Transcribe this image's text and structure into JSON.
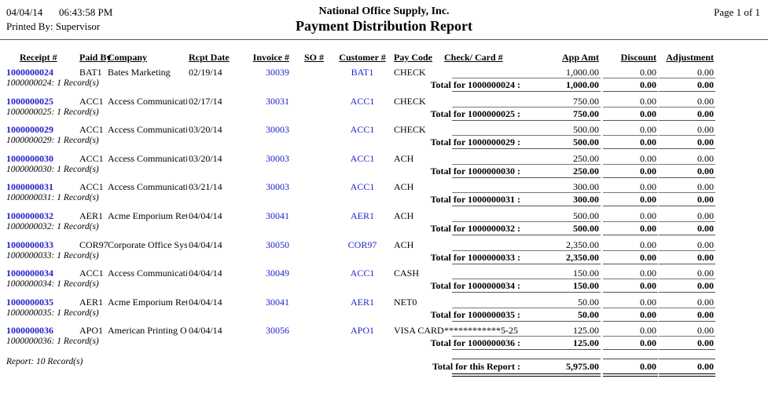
{
  "page": {
    "date": "04/04/14",
    "time": "06:43:58 PM",
    "printed_by": "Printed By: Supervisor",
    "company_name": "National Office Supply, Inc.",
    "report_title": "Payment Distribution Report",
    "page_label": "Page 1 of 1"
  },
  "colors": {
    "link_blue": "#2222CC",
    "rule_gray": "#555555"
  },
  "table": {
    "headers": [
      "Receipt #",
      "Paid By",
      "Company",
      "Rcpt Date",
      "Invoice #",
      "SO #",
      "Customer #",
      "Pay Code",
      "Check/ Card #",
      "App Amt",
      "Discount",
      "Adjustment"
    ],
    "groups": [
      {
        "receipt": "1000000024",
        "paid_by": "BAT1",
        "company": "Bates Marketing",
        "rcpt_date": "02/19/14",
        "invoice": "30039",
        "so": "",
        "customer": "BAT1",
        "pay_code": "CHECK",
        "check_card": "",
        "app_amt": "1,000.00",
        "discount": "0.00",
        "adjustment": "0.00",
        "record_line": "1000000024: 1 Record(s)",
        "total_label": "Total for 1000000024 :",
        "total_app": "1,000.00",
        "total_discount": "0.00",
        "total_adjustment": "0.00"
      },
      {
        "receipt": "1000000025",
        "paid_by": "ACC1",
        "company": "Access Communication",
        "rcpt_date": "02/17/14",
        "invoice": "30031",
        "so": "",
        "customer": "ACC1",
        "pay_code": "CHECK",
        "check_card": "",
        "app_amt": "750.00",
        "discount": "0.00",
        "adjustment": "0.00",
        "record_line": "1000000025: 1 Record(s)",
        "total_label": "Total for 1000000025 :",
        "total_app": "750.00",
        "total_discount": "0.00",
        "total_adjustment": "0.00"
      },
      {
        "receipt": "1000000029",
        "paid_by": "ACC1",
        "company": "Access Communication",
        "rcpt_date": "03/20/14",
        "invoice": "30003",
        "so": "",
        "customer": "ACC1",
        "pay_code": "CHECK",
        "check_card": "",
        "app_amt": "500.00",
        "discount": "0.00",
        "adjustment": "0.00",
        "record_line": "1000000029: 1 Record(s)",
        "total_label": "Total for 1000000029 :",
        "total_app": "500.00",
        "total_discount": "0.00",
        "total_adjustment": "0.00"
      },
      {
        "receipt": "1000000030",
        "paid_by": "ACC1",
        "company": "Access Communication",
        "rcpt_date": "03/20/14",
        "invoice": "30003",
        "so": "",
        "customer": "ACC1",
        "pay_code": "ACH",
        "check_card": "",
        "app_amt": "250.00",
        "discount": "0.00",
        "adjustment": "0.00",
        "record_line": "1000000030: 1 Record(s)",
        "total_label": "Total for 1000000030 :",
        "total_app": "250.00",
        "total_discount": "0.00",
        "total_adjustment": "0.00"
      },
      {
        "receipt": "1000000031",
        "paid_by": "ACC1",
        "company": "Access Communication",
        "rcpt_date": "03/21/14",
        "invoice": "30003",
        "so": "",
        "customer": "ACC1",
        "pay_code": "ACH",
        "check_card": "",
        "app_amt": "300.00",
        "discount": "0.00",
        "adjustment": "0.00",
        "record_line": "1000000031: 1 Record(s)",
        "total_label": "Total for 1000000031 :",
        "total_app": "300.00",
        "total_discount": "0.00",
        "total_adjustment": "0.00"
      },
      {
        "receipt": "1000000032",
        "paid_by": "AER1",
        "company": "Acme Emporium Retail",
        "rcpt_date": "04/04/14",
        "invoice": "30041",
        "so": "",
        "customer": "AER1",
        "pay_code": "ACH",
        "check_card": "",
        "app_amt": "500.00",
        "discount": "0.00",
        "adjustment": "0.00",
        "record_line": "1000000032: 1 Record(s)",
        "total_label": "Total for 1000000032 :",
        "total_app": "500.00",
        "total_discount": "0.00",
        "total_adjustment": "0.00"
      },
      {
        "receipt": "1000000033",
        "paid_by": "COR97",
        "company": "Corporate Office System",
        "rcpt_date": "04/04/14",
        "invoice": "30050",
        "so": "",
        "customer": "COR97",
        "pay_code": "ACH",
        "check_card": "",
        "app_amt": "2,350.00",
        "discount": "0.00",
        "adjustment": "0.00",
        "record_line": "1000000033: 1 Record(s)",
        "total_label": "Total for 1000000033 :",
        "total_app": "2,350.00",
        "total_discount": "0.00",
        "total_adjustment": "0.00"
      },
      {
        "receipt": "1000000034",
        "paid_by": "ACC1",
        "company": "Access Communication",
        "rcpt_date": "04/04/14",
        "invoice": "30049",
        "so": "",
        "customer": "ACC1",
        "pay_code": "CASH",
        "check_card": "",
        "app_amt": "150.00",
        "discount": "0.00",
        "adjustment": "0.00",
        "record_line": "1000000034: 1 Record(s)",
        "total_label": "Total for 1000000034 :",
        "total_app": "150.00",
        "total_discount": "0.00",
        "total_adjustment": "0.00"
      },
      {
        "receipt": "1000000035",
        "paid_by": "AER1",
        "company": "Acme Emporium Retail",
        "rcpt_date": "04/04/14",
        "invoice": "30041",
        "so": "",
        "customer": "AER1",
        "pay_code": "NET0",
        "check_card": "",
        "app_amt": "50.00",
        "discount": "0.00",
        "adjustment": "0.00",
        "record_line": "1000000035: 1 Record(s)",
        "total_label": "Total for 1000000035 :",
        "total_app": "50.00",
        "total_discount": "0.00",
        "total_adjustment": "0.00"
      },
      {
        "receipt": "1000000036",
        "paid_by": "APO1",
        "company": "American Printing Orga",
        "rcpt_date": "04/04/14",
        "invoice": "30056",
        "so": "",
        "customer": "APO1",
        "pay_code": "VISA CARD",
        "check_card": "************5-25",
        "app_amt": "125.00",
        "discount": "0.00",
        "adjustment": "0.00",
        "record_line": "1000000036: 1 Record(s)",
        "total_label": "Total for 1000000036 :",
        "total_app": "125.00",
        "total_discount": "0.00",
        "total_adjustment": "0.00"
      }
    ]
  },
  "footer": {
    "record_count": "Report: 10 Record(s)",
    "total_label": "Total for this Report :",
    "total_app": "5,975.00",
    "total_discount": "0.00",
    "total_adjustment": "0.00"
  }
}
